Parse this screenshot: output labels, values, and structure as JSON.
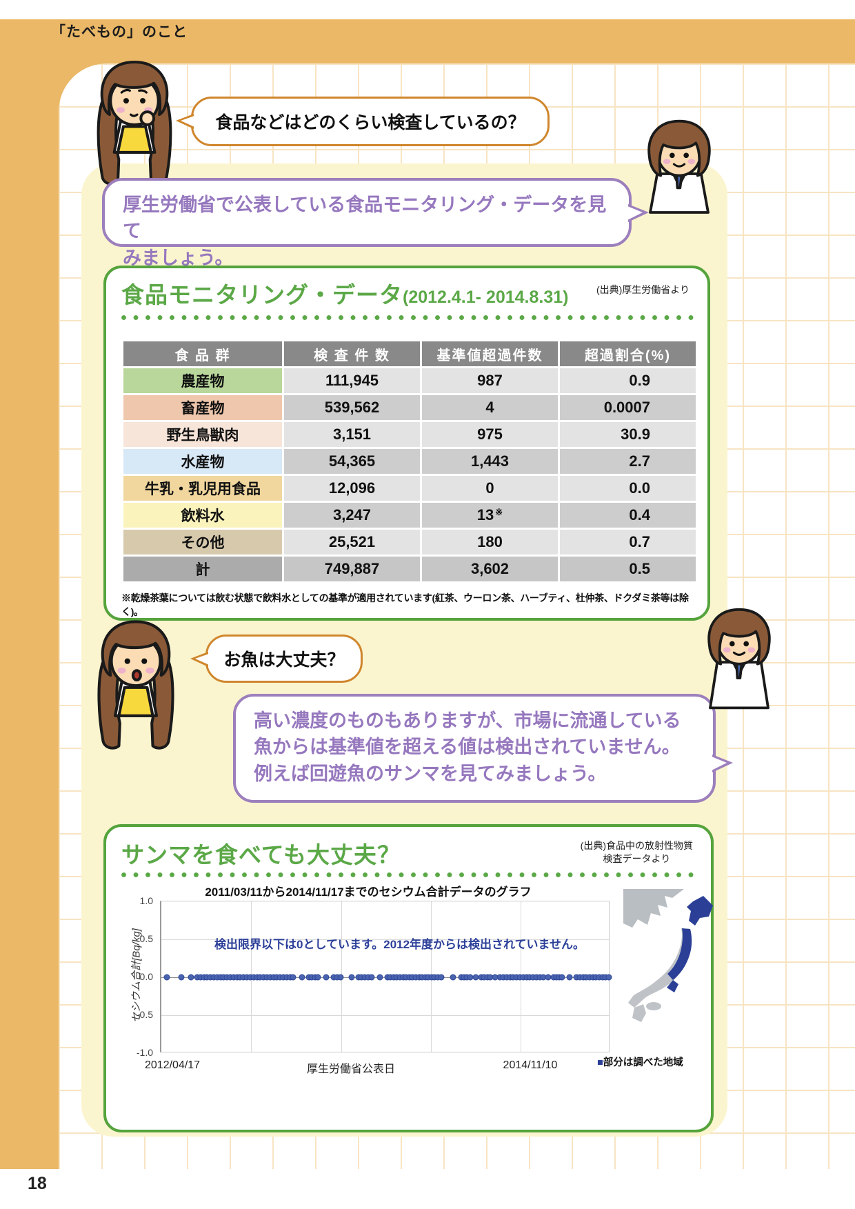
{
  "page": {
    "header": "「たべもの」のこと",
    "number": "18"
  },
  "bubbles": {
    "q1": "食品などはどのくらい検査しているの？",
    "a1_line1": "厚生労働省で公表している食品モニタリング・データを見て",
    "a1_line2": "みましょう。",
    "q2": "お魚は大丈夫？",
    "a2_line1": "高い濃度のものもありますが、市場に流通している",
    "a2_line2": "魚からは基準値を超える値は検出されていません。",
    "a2_line3": "例えば回遊魚のサンマを見てみましょう。"
  },
  "monitoring": {
    "title": "食品モニタリング・データ",
    "period": "(2012.4.1- 2014.8.31)",
    "source": "(出典)厚生労働省より",
    "table": {
      "headers": [
        "食 品 群",
        "検 査 件 数",
        "基準値超過件数",
        "超過割合(%)"
      ],
      "rows": [
        {
          "name": "農産物",
          "tested": "111,945",
          "exceeded": "987",
          "rate": "0.9"
        },
        {
          "name": "畜産物",
          "tested": "539,562",
          "exceeded": "4",
          "rate": "0.0007"
        },
        {
          "name": "野生鳥獣肉",
          "tested": "3,151",
          "exceeded": "975",
          "rate": "30.9"
        },
        {
          "name": "水産物",
          "tested": "54,365",
          "exceeded": "1,443",
          "rate": "2.7"
        },
        {
          "name": "牛乳・乳児用食品",
          "tested": "12,096",
          "exceeded": "0",
          "rate": "0.0"
        },
        {
          "name": "飲料水",
          "tested": "3,247",
          "exceeded": "13",
          "exceeded_note": "※",
          "rate": "0.4"
        },
        {
          "name": "その他",
          "tested": "25,521",
          "exceeded": "180",
          "rate": "0.7"
        },
        {
          "name": "計",
          "tested": "749,887",
          "exceeded": "3,602",
          "rate": "0.5"
        }
      ],
      "row_colors": [
        "#B9D79B",
        "#EFC7AD",
        "#F7E5DA",
        "#D7E8F7",
        "#F1D79E",
        "#FAF3BC",
        "#D7CAAC",
        "#ABABAB"
      ],
      "footnote": "※乾燥茶葉については飲む状態で飲料水としての基準が適用されています(紅茶、ウーロン茶、ハーブティ、杜仲茶、ドクダミ茶等は除く)。"
    }
  },
  "sanma": {
    "title": "サンマを食べても大丈夫？",
    "source_line1": "(出典)食品中の放射性物質",
    "source_line2": "検査データより",
    "map_caption_square": "■",
    "map_caption_text": "部分は調べた地域"
  },
  "chart_data": {
    "type": "scatter",
    "title": "2011/03/11から2014/11/17までのセシウム合計データのグラフ",
    "ylabel": "セシウム合計[Bq/kg]",
    "xlabel": "厚生労働省公表日",
    "x_start_label": "2012/04/17",
    "x_end_label": "2014/11/10",
    "ylim": [
      -1.0,
      1.0
    ],
    "yticks": [
      "1.0",
      "0.5",
      "0.0",
      "-0.5",
      "-1.0"
    ],
    "grid": true,
    "annotation": "検出限界以下は0としています。2012年度からは検出されていません。",
    "y_value_all_points": 0,
    "point_color": "#3A53A4",
    "point_clusters": [
      {
        "from": 0.08,
        "to": 0.295,
        "n": 30
      },
      {
        "from": 0.33,
        "to": 0.35,
        "n": 4
      },
      {
        "from": 0.385,
        "to": 0.4,
        "n": 3
      },
      {
        "from": 0.44,
        "to": 0.47,
        "n": 5
      },
      {
        "from": 0.505,
        "to": 0.625,
        "n": 18
      },
      {
        "from": 0.67,
        "to": 0.69,
        "n": 4
      },
      {
        "from": 0.715,
        "to": 0.735,
        "n": 4
      },
      {
        "from": 0.757,
        "to": 0.853,
        "n": 14
      },
      {
        "from": 0.877,
        "to": 0.895,
        "n": 4
      },
      {
        "from": 0.928,
        "to": 1.0,
        "n": 11
      }
    ],
    "point_singles": [
      0.012,
      0.045,
      0.066,
      0.315,
      0.368,
      0.425,
      0.488,
      0.652,
      0.702,
      0.745,
      0.865,
      0.912
    ]
  },
  "colors": {
    "frame_orange": "#EAB867",
    "cream": "#FBF5CF",
    "bubble_orange_border": "#D0862C",
    "purple": "#9C7FBC",
    "green": "#5BA847",
    "table_header_gray": "#898989",
    "scatter_blue": "#3A53A4",
    "map_blue": "#2B3F97",
    "map_gray": "#BFC3C7"
  }
}
